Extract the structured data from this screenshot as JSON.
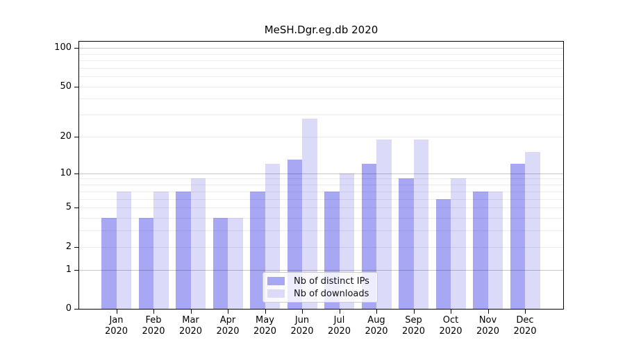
{
  "title": "MeSH.Dgr.eg.db 2020",
  "chart_data": {
    "type": "bar",
    "title": "MeSH.Dgr.eg.db 2020",
    "scale": "log1p",
    "grid": true,
    "legend_position": "lower center",
    "categories": [
      "Jan 2020",
      "Feb 2020",
      "Mar 2020",
      "Apr 2020",
      "May 2020",
      "Jun 2020",
      "Jul 2020",
      "Aug 2020",
      "Sep 2020",
      "Oct 2020",
      "Nov 2020",
      "Dec 2020"
    ],
    "series": [
      {
        "name": "Nb of distinct IPs",
        "color": "#a7a7f3",
        "values": [
          4,
          4,
          7,
          4,
          7,
          13,
          7,
          12,
          9,
          6,
          7,
          12
        ]
      },
      {
        "name": "Nb of downloads",
        "color": "#dbdbf9",
        "values": [
          7,
          7,
          9,
          4,
          12,
          28,
          10,
          19,
          19,
          9,
          7,
          15
        ]
      }
    ],
    "yticks": [
      0,
      1,
      2,
      5,
      10,
      20,
      50,
      100
    ],
    "grid_minor": [
      2,
      3,
      4,
      5,
      6,
      7,
      8,
      9,
      20,
      30,
      40,
      50,
      60,
      70,
      80,
      90
    ],
    "grid_major": [
      1,
      10,
      100
    ],
    "ylim": [
      0,
      120
    ],
    "xlabel": "",
    "ylabel": ""
  },
  "legend": {
    "items": [
      {
        "label": "Nb of distinct IPs"
      },
      {
        "label": "Nb of downloads"
      }
    ]
  }
}
